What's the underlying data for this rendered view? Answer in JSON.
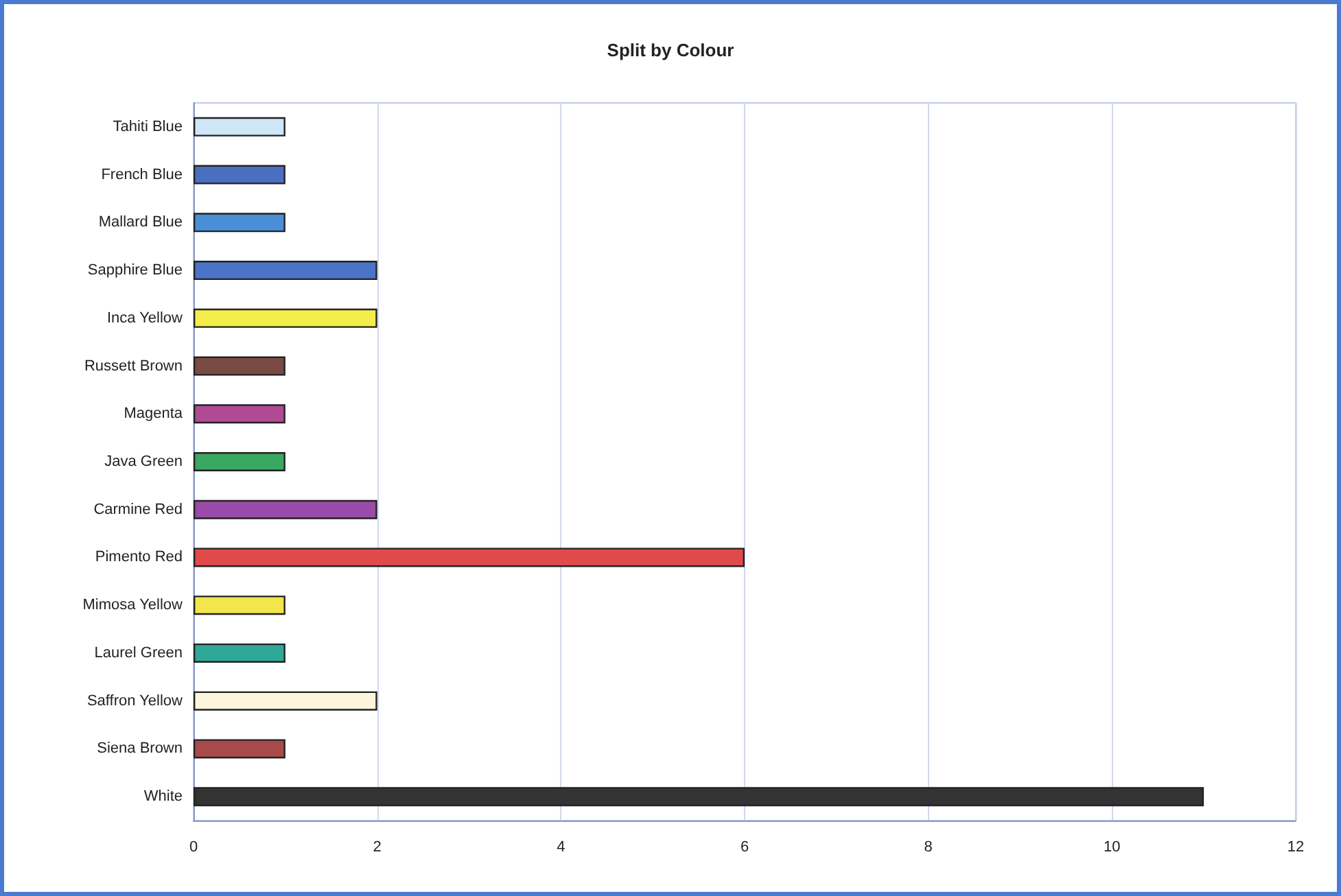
{
  "chart_data": {
    "type": "bar",
    "orientation": "horizontal",
    "title": "Split by Colour",
    "categories": [
      "Tahiti Blue",
      "French Blue",
      "Mallard Blue",
      "Sapphire Blue",
      "Inca Yellow",
      "Russett Brown",
      "Magenta",
      "Java Green",
      "Carmine Red",
      "Pimento Red",
      "Mimosa Yellow",
      "Laurel Green",
      "Saffron Yellow",
      "Siena Brown",
      "White"
    ],
    "values": [
      1,
      1,
      1,
      2,
      2,
      1,
      1,
      1,
      2,
      6,
      1,
      1,
      2,
      1,
      11
    ],
    "colors": [
      "#cfe6f7",
      "#4a6fc0",
      "#4a8ed8",
      "#4a74c8",
      "#f5ee4a",
      "#7a4a44",
      "#b04a94",
      "#3aa860",
      "#9a4aa8",
      "#e04a4a",
      "#f2e64a",
      "#30a898",
      "#fdf6dc",
      "#a84a4a",
      "#333333"
    ],
    "xlim": [
      0,
      12
    ],
    "xticks": [
      0,
      2,
      4,
      6,
      8,
      10,
      12
    ],
    "grid": "x"
  }
}
